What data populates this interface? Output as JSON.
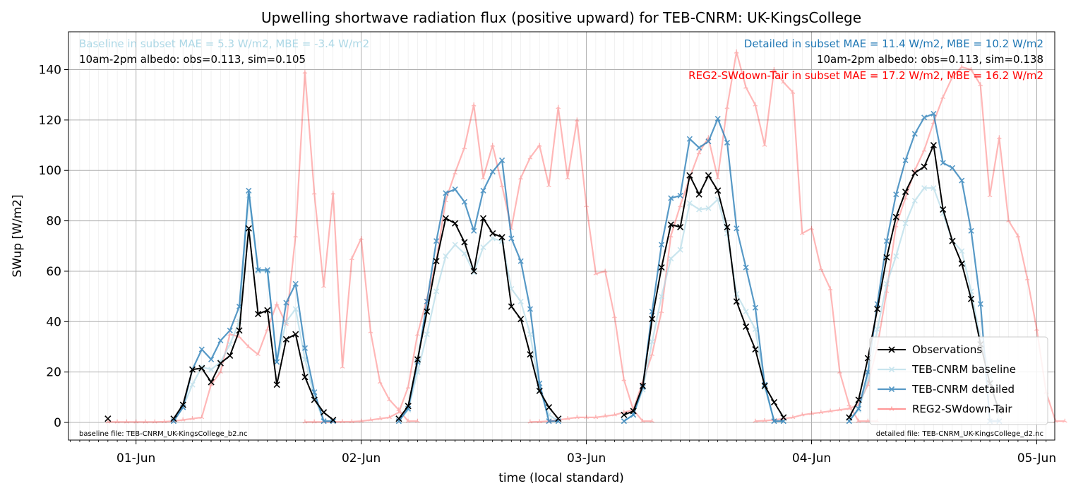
{
  "chart_data": {
    "type": "line",
    "title": "Upwelling shortwave radiation flux (positive upward) for TEB-CNRM: UK-KingsCollege",
    "xlabel": "time (local standard)",
    "ylabel": "SWup [W/m2]",
    "x_unit": "days (0 = 01-Jun 00:00 local standard)",
    "xlim": [
      -0.3,
      4.08
    ],
    "ylim": [
      -7,
      155
    ],
    "grid": true,
    "legend_position": "lower right",
    "x_ticks": [
      {
        "value": 0,
        "label": "01-Jun"
      },
      {
        "value": 1,
        "label": "02-Jun"
      },
      {
        "value": 2,
        "label": "03-Jun"
      },
      {
        "value": 3,
        "label": "04-Jun"
      },
      {
        "value": 4,
        "label": "05-Jun"
      }
    ],
    "y_ticks": [
      0,
      20,
      40,
      60,
      80,
      100,
      120,
      140
    ],
    "annotations": {
      "baseline_stats": "Baseline in subset MAE = 5.3 W/m2, MBE = -3.4 W/m2",
      "baseline_albedo": "10am-2pm albedo: obs=0.113, sim=0.105",
      "detailed_stats": "Detailed in subset MAE = 11.4 W/m2, MBE = 10.2 W/m2",
      "detailed_albedo": "10am-2pm albedo: obs=0.113, sim=0.138",
      "reg2_stats": "REG2-SWdown-Tair in subset MAE = 17.2 W/m2, MBE = 16.2 W/m2",
      "baseline_file": "baseline file: TEB-CNRM_UK-KingsCollege_b2.nc",
      "detailed_file": "detailed file: TEB-CNRM_UK-KingsCollege_d2.nc"
    },
    "colors": {
      "observations": "#000000",
      "baseline": "#add8e6",
      "detailed": "#1f77b4",
      "reg2": "#ff0000",
      "annotation_baseline": "#add8e6",
      "annotation_detailed": "#1f77b4",
      "annotation_reg2": "#ff0000"
    },
    "series": [
      {
        "name": "Observations",
        "key": "observations",
        "x_start": -0.125,
        "x_step": 0.041667,
        "values": [
          1.5,
          null,
          null,
          null,
          null,
          null,
          null,
          null,
          null,
          null,
          null,
          null,
          null,
          null,
          null,
          null,
          null,
          null,
          null,
          null,
          null,
          null,
          null,
          null,
          null,
          null,
          null,
          null,
          null,
          null,
          null,
          null,
          null,
          null,
          null,
          null,
          null,
          null,
          null,
          null,
          null,
          null,
          null,
          null,
          null,
          null,
          null,
          null,
          null,
          null,
          null,
          null,
          null,
          null,
          null,
          null,
          null,
          null,
          null,
          null,
          null,
          null,
          null,
          null,
          null,
          null,
          null,
          null,
          null,
          null,
          null,
          null,
          null,
          null,
          null,
          null,
          null,
          null,
          null,
          null,
          null,
          null,
          null,
          null,
          null,
          null,
          null,
          null,
          null,
          null,
          null,
          null,
          null,
          null,
          null,
          null,
          null,
          null,
          null,
          null,
          null,
          null,
          null,
          null,
          null,
          null,
          null,
          null,
          null,
          null,
          null,
          null,
          null,
          null,
          null,
          null,
          null,
          null,
          null,
          null,
          null,
          null,
          null,
          null,
          null,
          null,
          null,
          null,
          null,
          null,
          null,
          null,
          null,
          null,
          null,
          null,
          null,
          null,
          null,
          null,
          null,
          null,
          null,
          null,
          null,
          null,
          null,
          null,
          null,
          null,
          null,
          null,
          null,
          null,
          null,
          null,
          null,
          null,
          null,
          null,
          null,
          null,
          null,
          null,
          null,
          null,
          null,
          null,
          null,
          null,
          null,
          null,
          null,
          null,
          null,
          null,
          null,
          null,
          null,
          null,
          null,
          null,
          null,
          null,
          null,
          null,
          null,
          null,
          null,
          null,
          null,
          null,
          null,
          null,
          null,
          null,
          null
        ],
        "segments": [
          {
            "x_start": -0.125,
            "values": [
              1.5
            ]
          },
          {
            "x_start": 0.167,
            "values": [
              1.5,
              7,
              21,
              21.5,
              16,
              23.5,
              26.5,
              36.5,
              77,
              43,
              44.5,
              15,
              33,
              35,
              18,
              9,
              4,
              1
            ]
          },
          {
            "x_start": 1.167,
            "values": [
              1.5,
              6.5,
              25,
              44,
              64,
              81,
              79,
              71.5,
              60,
              81,
              75,
              73.5,
              46,
              41,
              27,
              12.5,
              6,
              1.5
            ]
          },
          {
            "x_start": 2.167,
            "values": [
              3,
              4.5,
              14.5,
              41,
              61.5,
              78.5,
              77.5,
              98,
              90.5,
              98,
              92,
              77.5,
              48,
              38,
              29,
              14.5,
              8,
              2
            ]
          },
          {
            "x_start": 3.167,
            "values": [
              2,
              9,
              25.5,
              45,
              65.5,
              81.5,
              91.5,
              99,
              101.5,
              110,
              84.5,
              72,
              63,
              49,
              31,
              15.5,
              4.5
            ]
          }
        ]
      },
      {
        "name": "TEB-CNRM baseline",
        "key": "baseline",
        "segments": [
          {
            "x_start": 0.167,
            "values": [
              0.5,
              6,
              15,
              22,
              21,
              24,
              31,
              40,
              90,
              60,
              60,
              24,
              40,
              45,
              25,
              10,
              0.5,
              0.5
            ]
          },
          {
            "x_start": 1.167,
            "values": [
              0.5,
              5,
              20,
              35,
              52,
              66,
              70.5,
              67,
              59.5,
              69.5,
              73,
              72,
              53,
              48,
              35,
              13,
              3,
              0.5
            ]
          },
          {
            "x_start": 2.167,
            "values": [
              0.5,
              3,
              13,
              32,
              50,
              65,
              68.5,
              87,
              84.5,
              85,
              88.5,
              75,
              51,
              44,
              37,
              14,
              0.5,
              0.5
            ]
          },
          {
            "x_start": 3.167,
            "values": [
              0.5,
              5,
              17,
              37,
              55,
              66,
              79,
              88,
              93,
              93,
              83,
              72,
              68,
              52,
              33,
              20,
              0.5
            ]
          }
        ]
      },
      {
        "name": "TEB-CNRM detailed",
        "key": "detailed",
        "segments": [
          {
            "x_start": 0.167,
            "values": [
              0.5,
              6,
              21,
              29,
              25,
              32.5,
              36.5,
              46,
              92,
              60.5,
              60.5,
              24,
              47.5,
              55,
              29.5,
              12,
              0.5,
              0.5
            ]
          },
          {
            "x_start": 1.167,
            "values": [
              0.5,
              5.5,
              24,
              48,
              72,
              91,
              92.5,
              87.5,
              76,
              92,
              99.5,
              104,
              73,
              64,
              45,
              15.5,
              0.5,
              0.5
            ]
          },
          {
            "x_start": 2.167,
            "values": [
              0.5,
              3,
              14,
              44,
              70.5,
              89,
              90,
              112.5,
              109,
              111.5,
              120.5,
              111,
              77,
              61.5,
              45.5,
              15,
              0.5,
              0.5
            ]
          },
          {
            "x_start": 3.167,
            "values": [
              0.5,
              5.5,
              20,
              47,
              72,
              90.5,
              104,
              114.5,
              121,
              122.5,
              103,
              101,
              96,
              76,
              47,
              0.5,
              0.5
            ]
          }
        ]
      },
      {
        "name": "REG2-SWdown-Tair",
        "key": "reg2",
        "segments": [
          {
            "x_start": -0.125,
            "values": [
              0.2,
              0.2,
              0.2,
              0.2,
              0.2,
              0.2,
              0.3,
              0.5,
              1,
              1.5,
              2,
              15,
              20,
              35,
              34,
              30,
              27,
              37,
              47,
              39,
              74,
              139,
              91,
              54,
              91,
              22,
              65,
              73,
              36,
              16,
              9,
              5,
              0.5,
              0.5
            ]
          },
          {
            "x_start": 0.75,
            "values": [
              0.2,
              0.2,
              0.2,
              0.2,
              0.3,
              0.3,
              0.5,
              1,
              1.5,
              2,
              4,
              14,
              35,
              49,
              64,
              88,
              99,
              109,
              126,
              97,
              110,
              94,
              77,
              97,
              105,
              110,
              94,
              125,
              97,
              120,
              86,
              59,
              60,
              42,
              17,
              5,
              0.5,
              0.5
            ]
          },
          {
            "x_start": 1.75,
            "values": [
              0.2,
              0.3,
              0.5,
              1,
              1.5,
              2,
              2,
              2,
              2.5,
              3,
              4,
              5,
              16,
              27,
              44,
              74,
              86,
              97,
              107,
              113,
              97,
              125,
              147,
              133,
              126,
              110,
              140,
              135,
              131,
              75,
              77,
              61,
              53,
              20,
              7,
              0.5,
              0.5,
              0.5
            ]
          },
          {
            "x_start": 2.75,
            "values": [
              0.5,
              0.7,
              1,
              1.5,
              2,
              3,
              3.5,
              4,
              4.5,
              5,
              5.5,
              7,
              15,
              30,
              52,
              78,
              89,
              100,
              108,
              119,
              129,
              137,
              141,
              140,
              134,
              90,
              113,
              80,
              74,
              57,
              37,
              12,
              0.5,
              0.5
            ]
          }
        ]
      }
    ]
  }
}
